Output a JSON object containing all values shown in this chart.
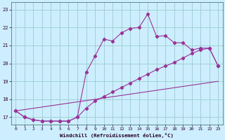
{
  "xlabel": "Windchill (Refroidissement éolien,°C)",
  "background_color": "#cceeff",
  "grid_color": "#99cccc",
  "line_color": "#993399",
  "xlim": [
    -0.5,
    23.5
  ],
  "ylim": [
    16.6,
    23.4
  ],
  "yticks": [
    17,
    18,
    19,
    20,
    21,
    22,
    23
  ],
  "xticks": [
    0,
    1,
    2,
    3,
    4,
    5,
    6,
    7,
    8,
    9,
    10,
    11,
    12,
    13,
    14,
    15,
    16,
    17,
    18,
    19,
    20,
    21,
    22,
    23
  ],
  "line1_x": [
    0,
    1,
    2,
    3,
    4,
    5,
    6,
    7,
    8,
    9,
    10,
    11,
    12,
    13,
    14,
    15,
    16,
    17,
    18,
    19,
    20,
    21,
    22,
    23
  ],
  "line1_y": [
    17.35,
    17.0,
    16.85,
    16.78,
    16.78,
    16.78,
    16.78,
    17.0,
    19.5,
    20.4,
    21.35,
    21.25,
    21.7,
    21.95,
    22.0,
    22.75,
    21.5,
    21.55,
    21.15,
    21.15,
    20.75,
    20.85,
    20.85,
    19.85
  ],
  "line2_x": [
    0,
    1,
    2,
    3,
    4,
    5,
    6,
    7,
    8,
    9,
    10,
    11,
    12,
    13,
    14,
    15,
    16,
    17,
    18,
    19,
    20,
    21,
    22,
    23
  ],
  "line2_y": [
    17.35,
    17.0,
    16.85,
    16.78,
    16.78,
    16.78,
    16.78,
    17.0,
    17.5,
    17.9,
    18.15,
    18.4,
    18.65,
    18.9,
    19.15,
    19.4,
    19.65,
    19.85,
    20.05,
    20.3,
    20.55,
    20.75,
    20.85,
    19.85
  ],
  "line3_x": [
    0,
    23
  ],
  "line3_y": [
    17.35,
    19.0
  ]
}
